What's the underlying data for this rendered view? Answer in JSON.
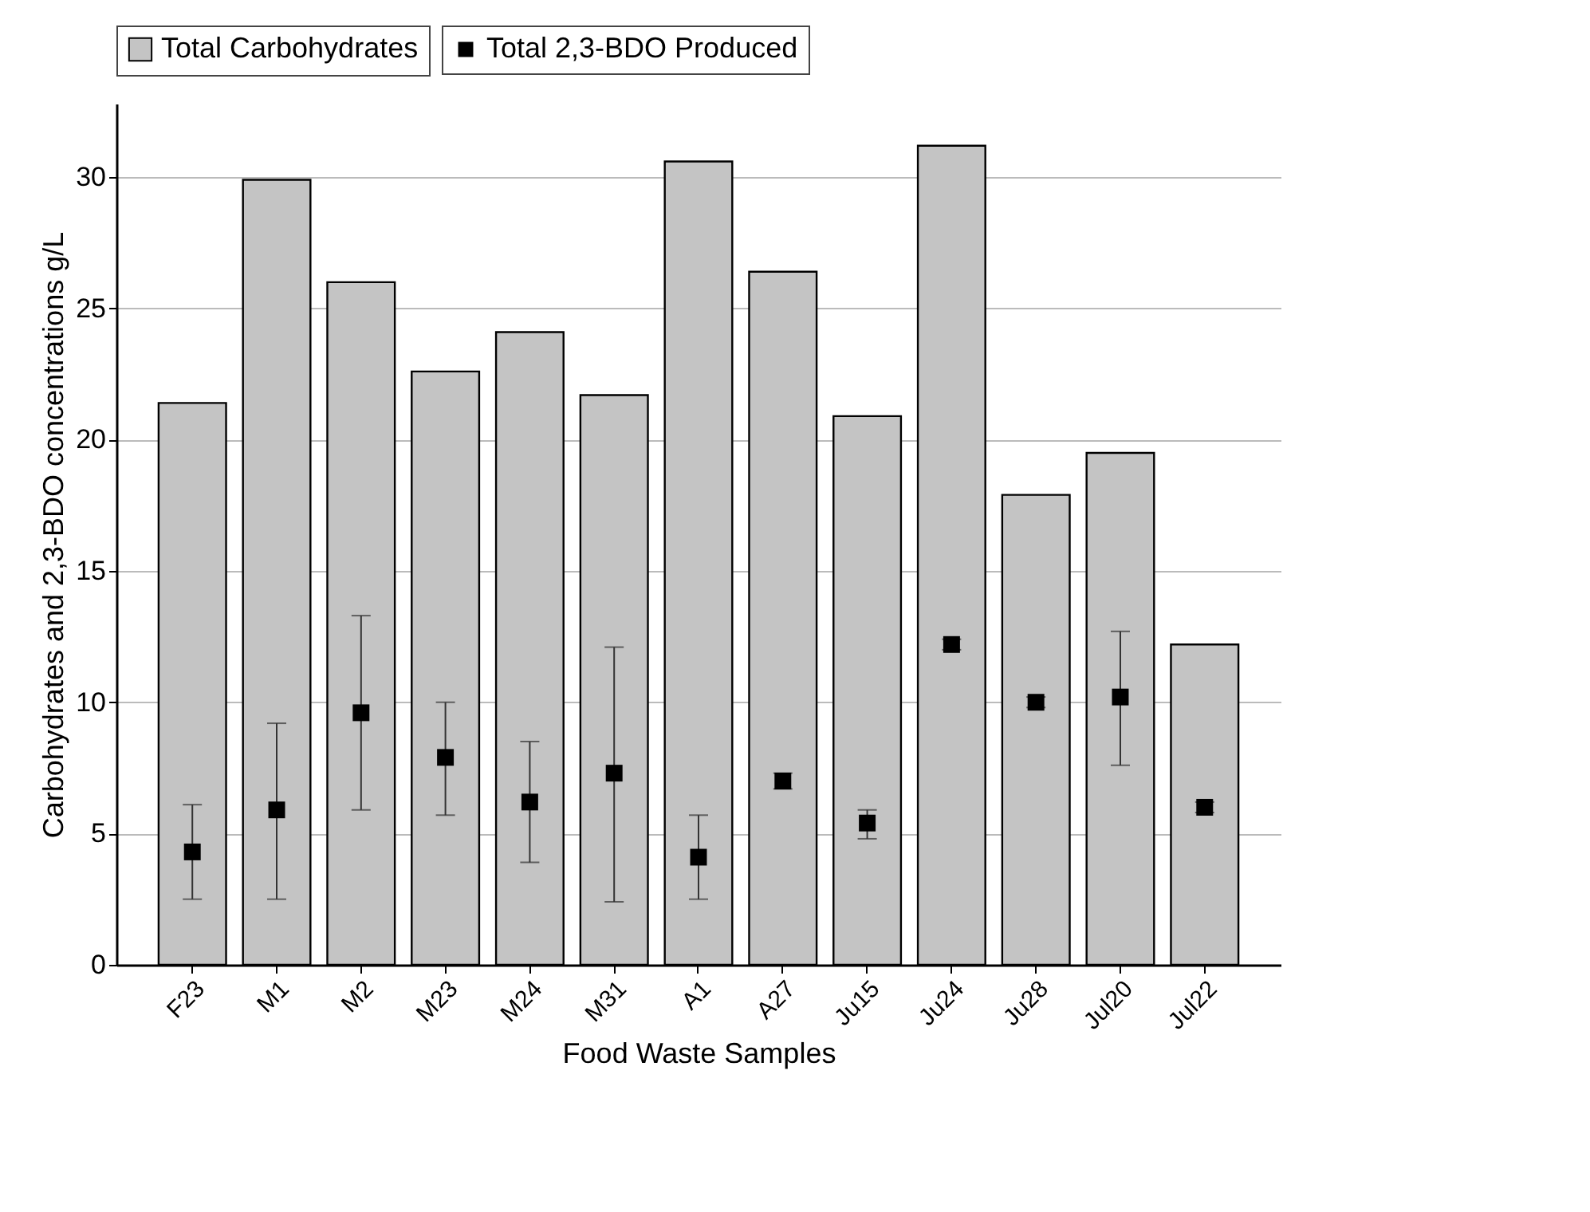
{
  "chart_data": {
    "type": "bar",
    "xlabel": "Food Waste Samples",
    "ylabel": "Carbohydrates and 2,3-BDO concentrations g/L",
    "categories": [
      "F23",
      "M1",
      "M2",
      "M23",
      "M24",
      "M31",
      "A1",
      "A27",
      "Ju15",
      "Ju24",
      "Ju28",
      "Jul20",
      "Jul22"
    ],
    "series": [
      {
        "name": "Total 2,3-BDO Produced",
        "type": "scatter",
        "color": "#000000",
        "values": [
          4.3,
          5.9,
          9.6,
          7.9,
          6.2,
          7.3,
          4.1,
          7.0,
          5.4,
          12.2,
          10.0,
          10.2,
          6.0
        ],
        "errors": [
          [
            2.5,
            6.1
          ],
          [
            2.5,
            9.2
          ],
          [
            5.9,
            13.3
          ],
          [
            5.7,
            10.0
          ],
          [
            3.9,
            8.5
          ],
          [
            2.4,
            12.1
          ],
          [
            2.5,
            5.7
          ],
          [
            6.7,
            7.3
          ],
          [
            4.8,
            5.9
          ],
          [
            12.0,
            12.4
          ],
          [
            9.8,
            10.2
          ],
          [
            7.6,
            12.7
          ],
          [
            5.8,
            6.2
          ]
        ]
      },
      {
        "name": "Total Carbohydrates",
        "type": "bar",
        "color": "#c4c4c4",
        "values": [
          21.4,
          29.9,
          26.0,
          22.6,
          24.1,
          21.7,
          30.6,
          26.4,
          20.9,
          31.2,
          17.9,
          19.5,
          12.2
        ]
      }
    ],
    "ylim": [
      0,
      32.8
    ],
    "yticks": [
      0,
      5,
      10,
      15,
      20,
      25,
      30
    ],
    "grid": "y",
    "legend": "top",
    "marker": "square"
  }
}
